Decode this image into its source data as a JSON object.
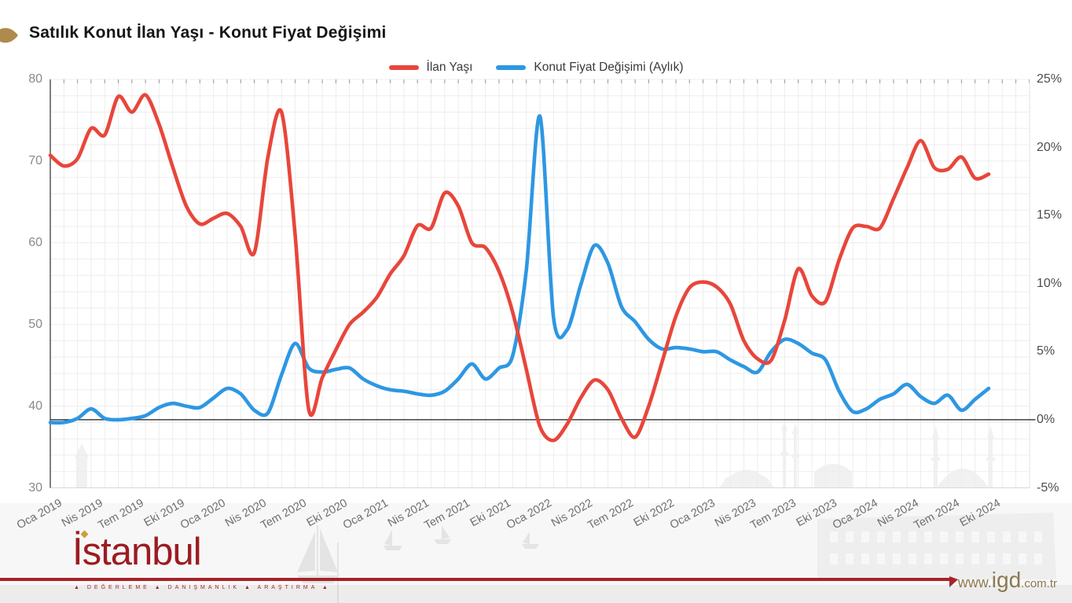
{
  "header": {
    "title": "Satılık Konut İlan Yaşı - Konut Fiyat Değişimi"
  },
  "legend": {
    "items": [
      {
        "label": "İlan Yaşı",
        "color": "#e8463b"
      },
      {
        "label": "Konut Fiyat Değişimi (Aylık)",
        "color": "#2e97e3"
      }
    ]
  },
  "colors": {
    "accent_gold": "#ae8b4c",
    "brand_maroon": "#a6232a",
    "url_gold": "#8c7950",
    "grid": "#ededed",
    "zero_line": "#1a1a1a"
  },
  "chart_data": {
    "type": "line",
    "title": "Satılık Konut İlan Yaşı - Konut Fiyat Değişimi",
    "x_unit": "month",
    "x_start": "Oca 2019",
    "x_end": "Eki 2024",
    "x_tick_labels": [
      "Oca 2019",
      "Nis 2019",
      "Tem 2019",
      "Eki 2019",
      "Oca 2020",
      "Nis 2020",
      "Tem 2020",
      "Eki 2020",
      "Oca 2021",
      "Nis 2021",
      "Tem 2021",
      "Eki 2021",
      "Oca 2022",
      "Nis 2022",
      "Tem 2022",
      "Eki 2022",
      "Oca 2023",
      "Nis 2023",
      "Tem 2023",
      "Eki 2023",
      "Oca 2024",
      "Nis 2024",
      "Tem 2024",
      "Eki 2024"
    ],
    "left_axis": {
      "min": 30,
      "max": 80,
      "ticks": [
        80,
        70,
        60,
        50,
        40,
        30
      ]
    },
    "right_axis": {
      "min": -5,
      "max": 25,
      "ticks": [
        {
          "value": 25,
          "label": "25%"
        },
        {
          "value": 20,
          "label": "20%"
        },
        {
          "value": 15,
          "label": "15%"
        },
        {
          "value": 10,
          "label": "10%"
        },
        {
          "value": 5,
          "label": "5%"
        },
        {
          "value": 0,
          "label": "0%"
        },
        {
          "value": -5,
          "label": "-5%"
        }
      ]
    },
    "grid": true,
    "legend_position": "top",
    "series": [
      {
        "name": "İlan Yaşı",
        "axis": "left",
        "color": "#e8463b",
        "values": [
          70.7,
          69.4,
          70.3,
          74,
          73.2,
          77.9,
          76,
          78.1,
          74.5,
          69.3,
          64.5,
          62.3,
          63,
          63.6,
          62,
          58.8,
          70.5,
          76,
          61,
          39.6,
          43.5,
          46.9,
          50,
          51.5,
          53.3,
          56.2,
          58.4,
          62.1,
          61.8,
          66.1,
          64.5,
          60,
          59.4,
          56.5,
          51.5,
          44.5,
          37.5,
          35.8,
          37.8,
          41,
          43.2,
          42,
          38.5,
          36.2,
          40,
          45.5,
          51,
          54.5,
          55.2,
          54.6,
          52.5,
          48,
          45.8,
          45.6,
          50.5,
          56.8,
          53.5,
          52.8,
          57.9,
          61.8,
          62,
          61.8,
          65.4,
          69.2,
          72.5,
          69.2,
          69,
          70.5,
          67.9,
          68.4
        ]
      },
      {
        "name": "Konut Fiyat Değişimi (Aylık)",
        "axis": "right",
        "unit": "%",
        "color": "#2e97e3",
        "values": [
          -0.2,
          -0.2,
          0.1,
          0.8,
          0.1,
          0,
          0.1,
          0.3,
          0.9,
          1.2,
          1,
          0.9,
          1.6,
          2.3,
          1.9,
          0.7,
          0.5,
          3.3,
          5.6,
          3.8,
          3.5,
          3.7,
          3.8,
          3,
          2.5,
          2.2,
          2.1,
          1.9,
          1.8,
          2.1,
          3,
          4.1,
          3,
          3.8,
          4.7,
          11,
          22.3,
          7.5,
          6.6,
          9.9,
          12.8,
          11.5,
          8.3,
          7.2,
          5.9,
          5.2,
          5.3,
          5.2,
          5,
          5,
          4.4,
          3.9,
          3.5,
          5,
          5.9,
          5.6,
          4.9,
          4.4,
          2.1,
          0.6,
          0.8,
          1.5,
          1.9,
          2.6,
          1.7,
          1.2,
          1.8,
          0.7,
          1.5,
          2.3
        ]
      }
    ]
  },
  "footer": {
    "logo_text": "İstanbul",
    "logo_tagline": "▲ DEĞERLEME ▲ DANIŞMANLIK ▲ ARAŞTIRMA ▲",
    "website": {
      "prefix": "www.",
      "name": "igd",
      "suffix": ".com.tr"
    }
  }
}
